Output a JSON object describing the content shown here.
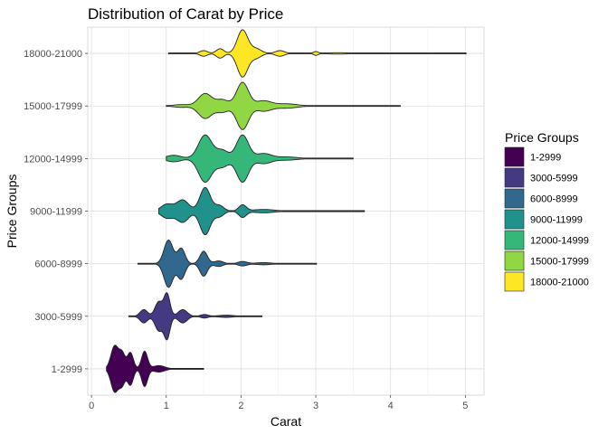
{
  "chart_data": {
    "type": "violin",
    "title": "Distribution of Carat by Price",
    "xlabel": "Carat",
    "ylabel": "Price Groups",
    "xlim": [
      -0.05,
      5.25
    ],
    "xticks": [
      "0",
      "1",
      "2",
      "3",
      "4",
      "5"
    ],
    "grid": true,
    "legend": {
      "title": "Price Groups",
      "placement": "right"
    },
    "categories": [
      "1-2999",
      "3000-5999",
      "6000-8999",
      "9000-11999",
      "12000-14999",
      "15000-17999",
      "18000-21000"
    ],
    "series": [
      {
        "name": "1-2999",
        "color": "#440154",
        "range": [
          0.2,
          1.5
        ],
        "modes": [
          [
            0.31,
            0.85,
            0.05
          ],
          [
            0.41,
            0.55,
            0.04
          ],
          [
            0.52,
            0.6,
            0.04
          ],
          [
            0.71,
            0.65,
            0.04
          ],
          [
            0.9,
            0.12,
            0.08
          ]
        ]
      },
      {
        "name": "3000-5999",
        "color": "#443983",
        "range": [
          0.5,
          2.28
        ],
        "modes": [
          [
            0.7,
            0.3,
            0.05
          ],
          [
            0.9,
            0.65,
            0.05
          ],
          [
            1.01,
            1.0,
            0.04
          ],
          [
            1.22,
            0.3,
            0.06
          ],
          [
            1.51,
            0.08,
            0.05
          ],
          [
            1.8,
            0.05,
            0.1
          ]
        ]
      },
      {
        "name": "6000-8999",
        "color": "#31688e",
        "range": [
          0.62,
          3.01
        ],
        "modes": [
          [
            1.03,
            0.85,
            0.06
          ],
          [
            1.2,
            0.55,
            0.05
          ],
          [
            1.5,
            0.45,
            0.05
          ],
          [
            1.7,
            0.1,
            0.06
          ],
          [
            2.02,
            0.08,
            0.06
          ],
          [
            2.3,
            0.04,
            0.1
          ]
        ]
      },
      {
        "name": "9000-11999",
        "color": "#21918c",
        "range": [
          0.9,
          3.65
        ],
        "modes": [
          [
            1.01,
            0.25,
            0.08
          ],
          [
            1.22,
            0.4,
            0.08
          ],
          [
            1.52,
            0.85,
            0.07
          ],
          [
            1.71,
            0.2,
            0.06
          ],
          [
            2.02,
            0.22,
            0.05
          ],
          [
            2.3,
            0.06,
            0.15
          ]
        ]
      },
      {
        "name": "12000-14999",
        "color": "#35b779",
        "range": [
          1.0,
          3.5
        ],
        "modes": [
          [
            1.1,
            0.1,
            0.1
          ],
          [
            1.52,
            0.72,
            0.09
          ],
          [
            1.75,
            0.25,
            0.08
          ],
          [
            2.02,
            0.72,
            0.08
          ],
          [
            2.3,
            0.15,
            0.1
          ],
          [
            2.6,
            0.05,
            0.15
          ]
        ]
      },
      {
        "name": "15000-17999",
        "color": "#90d743",
        "range": [
          1.0,
          4.13
        ],
        "modes": [
          [
            1.2,
            0.05,
            0.1
          ],
          [
            1.52,
            0.45,
            0.09
          ],
          [
            1.75,
            0.22,
            0.08
          ],
          [
            2.02,
            0.85,
            0.08
          ],
          [
            2.3,
            0.18,
            0.1
          ],
          [
            2.6,
            0.08,
            0.15
          ]
        ]
      },
      {
        "name": "18000-21000",
        "color": "#fde725",
        "range": [
          1.03,
          5.01
        ],
        "modes": [
          [
            1.5,
            0.12,
            0.05
          ],
          [
            1.72,
            0.2,
            0.05
          ],
          [
            2.02,
            1.0,
            0.07
          ],
          [
            2.2,
            0.2,
            0.07
          ],
          [
            2.52,
            0.12,
            0.06
          ],
          [
            3.0,
            0.08,
            0.03
          ],
          [
            3.3,
            0.03,
            0.15
          ]
        ]
      }
    ]
  }
}
